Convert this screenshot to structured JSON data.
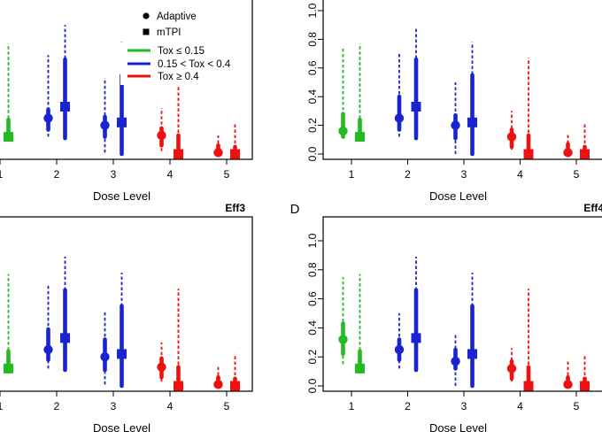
{
  "legend": {
    "adaptive": "Adaptive",
    "mtpi": "mTPI",
    "tox_low": "Tox ≤ 0.15",
    "tox_mid": "0.15 < Tox < 0.4",
    "tox_high": "Tox ≥ 0.4"
  },
  "colors": {
    "tox_low": "#22bb22",
    "tox_mid": "#1a23d0",
    "tox_high": "#ee1111"
  },
  "chart_data": [
    {
      "type": "interval",
      "title": "",
      "label": "",
      "xlabel": "Dose Level",
      "ylabel": "",
      "x_ticks": [
        "1",
        "2",
        "3",
        "4",
        "5"
      ],
      "y_ticks": [],
      "ylim": [
        0,
        1.0
      ],
      "series": [
        {
          "name": "Adaptive",
          "points": [
            {
              "dose": 2,
              "tox_group": "mid",
              "median": 0.25,
              "inner": [
                0.17,
                0.31
              ],
              "outer": [
                0.12,
                0.69
              ]
            },
            {
              "dose": 3,
              "tox_group": "mid",
              "median": 0.2,
              "inner": [
                0.12,
                0.26
              ],
              "outer": [
                0.01,
                0.53
              ]
            },
            {
              "dose": 4,
              "tox_group": "high",
              "median": 0.13,
              "inner": [
                0.06,
                0.18
              ],
              "outer": [
                0.02,
                0.32
              ]
            },
            {
              "dose": 5,
              "tox_group": "high",
              "median": 0.01,
              "inner": [
                0.0,
                0.06
              ],
              "outer": [
                0.0,
                0.13
              ]
            }
          ]
        },
        {
          "name": "mTPI",
          "points": [
            {
              "dose": 1,
              "tox_group": "low",
              "median": 0.12,
              "inner": [
                0.1,
                0.24
              ],
              "outer": [
                0.1,
                0.77
              ]
            },
            {
              "dose": 2,
              "tox_group": "mid",
              "median": 0.33,
              "inner": [
                0.11,
                0.66
              ],
              "outer": [
                0.11,
                0.9
              ]
            },
            {
              "dose": 3,
              "tox_group": "mid",
              "median": 0.22,
              "inner": [
                0.0,
                0.55
              ],
              "outer": [
                0.0,
                0.78
              ]
            },
            {
              "dose": 4,
              "tox_group": "high",
              "median": 0.0,
              "inner": [
                0.0,
                0.13
              ],
              "outer": [
                0.0,
                0.67
              ]
            },
            {
              "dose": 5,
              "tox_group": "high",
              "median": 0.0,
              "inner": [
                0.0,
                0.05
              ],
              "outer": [
                0.0,
                0.22
              ]
            }
          ]
        }
      ]
    },
    {
      "type": "interval",
      "title": "",
      "label": "",
      "xlabel": "Dose Level",
      "ylabel": "",
      "x_ticks": [
        "1",
        "2",
        "3",
        "4",
        "5"
      ],
      "y_ticks": [
        "0.0",
        "0.2",
        "0.4",
        "0.6",
        "0.8",
        "1.0"
      ],
      "ylim": [
        0,
        1.0
      ],
      "series": [
        {
          "name": "Adaptive",
          "points": [
            {
              "dose": 1,
              "tox_group": "low",
              "median": 0.16,
              "inner": [
                0.12,
                0.28
              ],
              "outer": [
                0.12,
                0.75
              ]
            },
            {
              "dose": 2,
              "tox_group": "mid",
              "median": 0.25,
              "inner": [
                0.17,
                0.4
              ],
              "outer": [
                0.12,
                0.71
              ]
            },
            {
              "dose": 3,
              "tox_group": "mid",
              "median": 0.2,
              "inner": [
                0.11,
                0.27
              ],
              "outer": [
                0.0,
                0.5
              ]
            },
            {
              "dose": 4,
              "tox_group": "high",
              "median": 0.12,
              "inner": [
                0.05,
                0.17
              ],
              "outer": [
                0.03,
                0.3
              ]
            },
            {
              "dose": 5,
              "tox_group": "high",
              "median": 0.01,
              "inner": [
                0.0,
                0.07
              ],
              "outer": [
                0.0,
                0.14
              ]
            }
          ]
        },
        {
          "name": "mTPI",
          "points": [
            {
              "dose": 1,
              "tox_group": "low",
              "median": 0.12,
              "inner": [
                0.1,
                0.24
              ],
              "outer": [
                0.1,
                0.77
              ]
            },
            {
              "dose": 2,
              "tox_group": "mid",
              "median": 0.33,
              "inner": [
                0.11,
                0.66
              ],
              "outer": [
                0.11,
                0.88
              ]
            },
            {
              "dose": 3,
              "tox_group": "mid",
              "median": 0.22,
              "inner": [
                0.0,
                0.55
              ],
              "outer": [
                0.0,
                0.78
              ]
            },
            {
              "dose": 4,
              "tox_group": "high",
              "median": 0.0,
              "inner": [
                0.0,
                0.13
              ],
              "outer": [
                0.0,
                0.67
              ]
            },
            {
              "dose": 5,
              "tox_group": "high",
              "median": 0.0,
              "inner": [
                0.0,
                0.05
              ],
              "outer": [
                0.0,
                0.22
              ]
            }
          ]
        }
      ]
    },
    {
      "type": "interval",
      "title": "Eff3",
      "label": "",
      "xlabel": "Dose Level",
      "ylabel": "",
      "x_ticks": [
        "1",
        "2",
        "3",
        "4",
        "5"
      ],
      "y_ticks": [],
      "ylim": [
        0,
        1.0
      ],
      "series": [
        {
          "name": "Adaptive",
          "points": [
            {
              "dose": 2,
              "tox_group": "mid",
              "median": 0.25,
              "inner": [
                0.18,
                0.39
              ],
              "outer": [
                0.12,
                0.7
              ]
            },
            {
              "dose": 3,
              "tox_group": "mid",
              "median": 0.2,
              "inner": [
                0.11,
                0.32
              ],
              "outer": [
                0.01,
                0.51
              ]
            },
            {
              "dose": 4,
              "tox_group": "high",
              "median": 0.13,
              "inner": [
                0.06,
                0.19
              ],
              "outer": [
                0.03,
                0.3
              ]
            },
            {
              "dose": 5,
              "tox_group": "high",
              "median": 0.01,
              "inner": [
                0.0,
                0.06
              ],
              "outer": [
                0.0,
                0.13
              ]
            }
          ]
        },
        {
          "name": "mTPI",
          "points": [
            {
              "dose": 1,
              "tox_group": "low",
              "median": 0.12,
              "inner": [
                0.1,
                0.24
              ],
              "outer": [
                0.1,
                0.77
              ]
            },
            {
              "dose": 2,
              "tox_group": "mid",
              "median": 0.33,
              "inner": [
                0.11,
                0.66
              ],
              "outer": [
                0.11,
                0.89
              ]
            },
            {
              "dose": 3,
              "tox_group": "mid",
              "median": 0.22,
              "inner": [
                0.0,
                0.55
              ],
              "outer": [
                0.0,
                0.78
              ]
            },
            {
              "dose": 4,
              "tox_group": "high",
              "median": 0.0,
              "inner": [
                0.0,
                0.13
              ],
              "outer": [
                0.0,
                0.67
              ]
            },
            {
              "dose": 5,
              "tox_group": "high",
              "median": 0.0,
              "inner": [
                0.0,
                0.05
              ],
              "outer": [
                0.0,
                0.22
              ]
            }
          ]
        }
      ]
    },
    {
      "type": "interval",
      "title": "Eff4",
      "label": "D",
      "xlabel": "Dose Level",
      "ylabel": "",
      "x_ticks": [
        "1",
        "2",
        "3",
        "4",
        "5"
      ],
      "y_ticks": [
        "0.0",
        "0.2",
        "0.4",
        "0.6",
        "0.8",
        "1.0"
      ],
      "ylim": [
        0,
        1.0
      ],
      "series": [
        {
          "name": "Adaptive",
          "points": [
            {
              "dose": 1,
              "tox_group": "low",
              "median": 0.32,
              "inner": [
                0.22,
                0.43
              ],
              "outer": [
                0.15,
                0.75
              ]
            },
            {
              "dose": 2,
              "tox_group": "mid",
              "median": 0.25,
              "inner": [
                0.18,
                0.32
              ],
              "outer": [
                0.12,
                0.5
              ]
            },
            {
              "dose": 3,
              "tox_group": "mid",
              "median": 0.17,
              "inner": [
                0.12,
                0.25
              ],
              "outer": [
                0.0,
                0.35
              ]
            },
            {
              "dose": 4,
              "tox_group": "high",
              "median": 0.12,
              "inner": [
                0.05,
                0.17
              ],
              "outer": [
                0.03,
                0.26
              ]
            },
            {
              "dose": 5,
              "tox_group": "high",
              "median": 0.01,
              "inner": [
                0.0,
                0.06
              ],
              "outer": [
                0.0,
                0.18
              ]
            }
          ]
        },
        {
          "name": "mTPI",
          "points": [
            {
              "dose": 1,
              "tox_group": "low",
              "median": 0.12,
              "inner": [
                0.1,
                0.24
              ],
              "outer": [
                0.1,
                0.77
              ]
            },
            {
              "dose": 2,
              "tox_group": "mid",
              "median": 0.33,
              "inner": [
                0.11,
                0.66
              ],
              "outer": [
                0.11,
                0.89
              ]
            },
            {
              "dose": 3,
              "tox_group": "mid",
              "median": 0.22,
              "inner": [
                0.0,
                0.55
              ],
              "outer": [
                0.0,
                0.78
              ]
            },
            {
              "dose": 4,
              "tox_group": "high",
              "median": 0.0,
              "inner": [
                0.0,
                0.13
              ],
              "outer": [
                0.0,
                0.67
              ]
            },
            {
              "dose": 5,
              "tox_group": "high",
              "median": 0.0,
              "inner": [
                0.0,
                0.05
              ],
              "outer": [
                0.0,
                0.22
              ]
            }
          ]
        }
      ]
    }
  ]
}
